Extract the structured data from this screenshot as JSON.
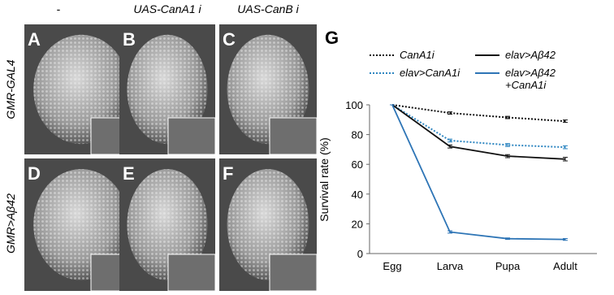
{
  "figure": {
    "column_headers": [
      "-",
      "UAS-CanA1 i",
      "UAS-CanB i"
    ],
    "row_labels": [
      "GMR-GAL4",
      "GMR>Aβ42"
    ],
    "panels": [
      "A",
      "B",
      "C",
      "D",
      "E",
      "F"
    ]
  },
  "chart_data": {
    "type": "line",
    "panel_label": "G",
    "y_label": "Survival rate (%)",
    "categories": [
      "Egg",
      "Larva",
      "Pupa",
      "Adult"
    ],
    "ylim": [
      0,
      100
    ],
    "yticks": [
      0,
      20,
      40,
      60,
      80,
      100
    ],
    "series": [
      {
        "name": "CanA1i",
        "color": "#111111",
        "dash": true,
        "values": [
          100,
          94.5,
          91.5,
          89
        ],
        "errors": [
          0,
          0.8,
          0.8,
          0.8
        ]
      },
      {
        "name": "elav>CanA1i",
        "color": "#2e86c1",
        "dash": true,
        "values": [
          100,
          76,
          73,
          71.5
        ],
        "errors": [
          0,
          1,
          1,
          1
        ]
      },
      {
        "name": "elav>Aβ42",
        "color": "#111111",
        "dash": false,
        "values": [
          100,
          72,
          65.5,
          63.5
        ],
        "errors": [
          0,
          1,
          1,
          1.2
        ]
      },
      {
        "name": "elav>Aβ42\n+CanA1i",
        "color": "#2e75b6",
        "dash": false,
        "values": [
          100,
          14.5,
          10,
          9.5
        ],
        "errors": [
          0,
          0.8,
          0.5,
          0.6
        ]
      }
    ]
  }
}
